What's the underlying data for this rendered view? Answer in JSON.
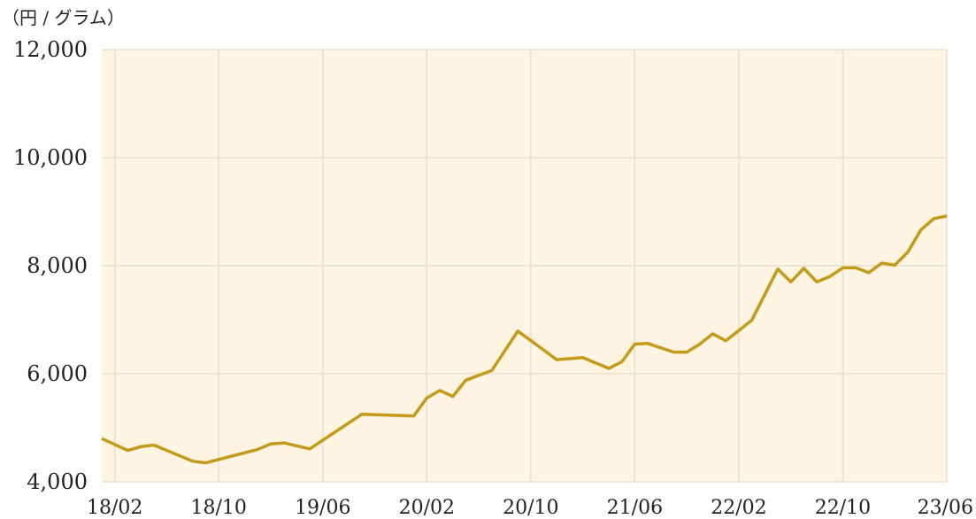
{
  "chart_data": {
    "type": "line",
    "unit_label": "（円 / グラム）",
    "title": "",
    "xlabel": "",
    "ylabel": "",
    "ylim": [
      4000,
      12000
    ],
    "y_ticks": [
      "4,000",
      "6,000",
      "8,000",
      "10,000",
      "12,000"
    ],
    "y_tick_values": [
      4000,
      6000,
      8000,
      10000,
      12000
    ],
    "x_ticks": [
      "18/02",
      "18/10",
      "19/06",
      "20/02",
      "20/10",
      "21/06",
      "22/02",
      "22/10",
      "23/06"
    ],
    "grid": true,
    "colors": {
      "line": "#C49A1A",
      "plot_bg": "#FDF4E1",
      "grid": "#E6E0D2"
    },
    "series": [
      {
        "values": [
          [
            "18/01",
            4800
          ],
          [
            "18/03",
            4580
          ],
          [
            "18/04",
            4650
          ],
          [
            "18/05",
            4680
          ],
          [
            "18/08",
            4380
          ],
          [
            "18/09",
            4350
          ],
          [
            "19/01",
            4600
          ],
          [
            "19/02",
            4700
          ],
          [
            "19/03",
            4720
          ],
          [
            "19/05",
            4610
          ],
          [
            "19/09",
            5250
          ],
          [
            "20/01",
            5220
          ],
          [
            "20/02",
            5550
          ],
          [
            "20/03",
            5690
          ],
          [
            "20/04",
            5580
          ],
          [
            "20/05",
            5880
          ],
          [
            "20/07",
            6060
          ],
          [
            "20/09",
            6790
          ],
          [
            "20/12",
            6260
          ],
          [
            "21/02",
            6300
          ],
          [
            "21/04",
            6100
          ],
          [
            "21/05",
            6220
          ],
          [
            "21/06",
            6550
          ],
          [
            "21/07",
            6560
          ],
          [
            "21/09",
            6400
          ],
          [
            "21/10",
            6400
          ],
          [
            "21/11",
            6550
          ],
          [
            "21/12",
            6740
          ],
          [
            "22/01",
            6610
          ],
          [
            "22/03",
            6990
          ],
          [
            "22/05",
            7940
          ],
          [
            "22/06",
            7700
          ],
          [
            "22/07",
            7950
          ],
          [
            "22/08",
            7700
          ],
          [
            "22/09",
            7800
          ],
          [
            "22/10",
            7960
          ],
          [
            "22/11",
            7960
          ],
          [
            "22/12",
            7870
          ],
          [
            "23/01",
            8050
          ],
          [
            "23/02",
            8010
          ],
          [
            "23/03",
            8250
          ],
          [
            "23/04",
            8660
          ],
          [
            "23/05",
            8870
          ],
          [
            "23/06",
            8920
          ]
        ]
      }
    ]
  }
}
